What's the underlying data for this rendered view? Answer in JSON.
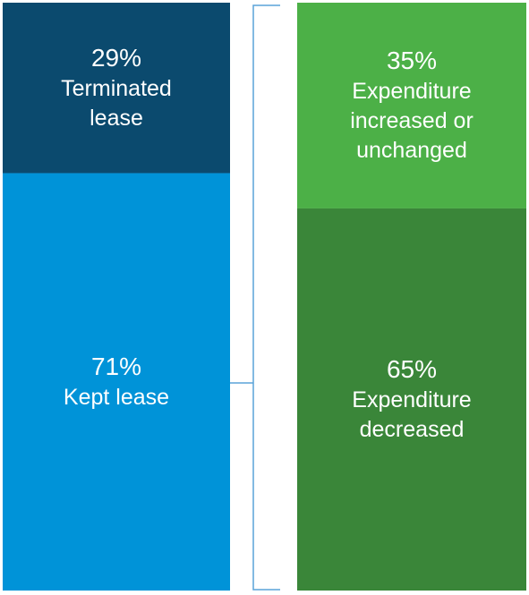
{
  "chart_data": {
    "type": "bar",
    "stacked": true,
    "unit": "%",
    "bars": [
      {
        "id": "lease",
        "segments": [
          {
            "value": 29,
            "value_label": "29%",
            "label": "Terminated\nlease",
            "color": "#0b4a6e"
          },
          {
            "value": 71,
            "value_label": "71%",
            "label": "Kept lease",
            "color": "#0093d8"
          }
        ]
      },
      {
        "id": "expenditure",
        "segments": [
          {
            "value": 35,
            "value_label": "35%",
            "label": "Expenditure\nincreased or\nunchanged",
            "color": "#4cb047"
          },
          {
            "value": 65,
            "value_label": "65%",
            "label": "Expenditure\ndecreased",
            "color": "#3a8639"
          }
        ]
      }
    ],
    "connector": {
      "from": "lease.1",
      "to": "expenditure",
      "color": "#5aa3d9"
    }
  }
}
